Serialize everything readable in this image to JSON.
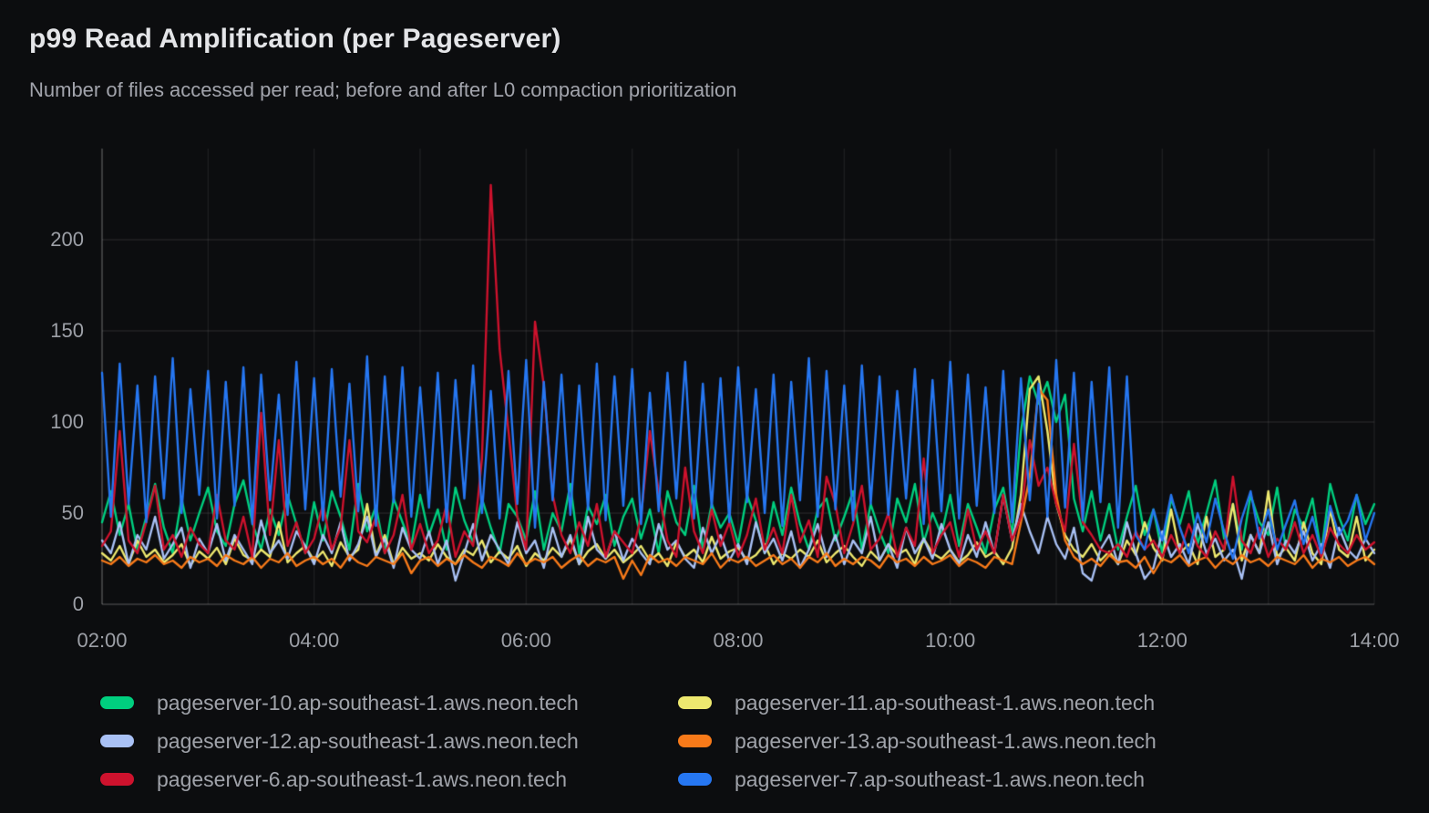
{
  "chart_data": {
    "type": "line",
    "title": "p99 Read Amplification (per Pageserver)",
    "subtitle": "Number of files accessed per read; before and after L0 compaction prioritization",
    "legend_position": "bottom",
    "grid": true,
    "x_axis": {
      "start": "02:00",
      "end": "14:00",
      "step_minutes": 5,
      "total_minutes": 720,
      "tick_labels": [
        "02:00",
        "04:00",
        "06:00",
        "08:00",
        "10:00",
        "12:00",
        "14:00"
      ],
      "tick_every_minutes": 120,
      "grid_every_minutes": 60
    },
    "y_axis": {
      "min": 0,
      "max": 250,
      "tick_values": [
        0,
        50,
        100,
        150,
        200
      ],
      "tick_labels": [
        "0",
        "50",
        "100",
        "150",
        "200"
      ]
    },
    "series": [
      {
        "name": "pageserver-10.ap-southeast-1.aws.neon.tech",
        "color": "#00CF7F",
        "values": [
          45,
          62,
          38,
          55,
          30,
          48,
          66,
          42,
          28,
          58,
          35,
          50,
          64,
          40,
          32,
          55,
          68,
          45,
          30,
          52,
          38,
          60,
          44,
          28,
          56,
          35,
          62,
          48,
          30,
          66,
          40,
          54,
          28,
          58,
          45,
          32,
          60,
          38,
          52,
          30,
          64,
          46,
          34,
          58,
          42,
          28,
          55,
          48,
          35,
          62,
          30,
          50,
          40,
          66,
          28,
          54,
          44,
          60,
          32,
          48,
          58,
          36,
          52,
          28,
          62,
          45,
          38,
          65,
          30,
          55,
          42,
          50,
          33,
          60,
          46,
          28,
          56,
          38,
          64,
          44,
          30,
          52,
          58,
          35,
          48,
          62,
          30,
          55,
          40,
          28,
          58,
          45,
          66,
          34,
          50,
          38,
          60,
          32,
          55,
          42,
          28,
          52,
          64,
          38,
          95,
          125,
          110,
          122,
          100,
          115,
          58,
          40,
          62,
          35,
          55,
          30,
          48,
          65,
          38,
          52,
          28,
          58,
          44,
          62,
          33,
          50,
          68,
          36,
          55,
          30,
          60,
          45,
          38,
          64,
          30,
          52,
          42,
          58,
          28,
          66,
          48,
          35,
          60,
          44,
          55
        ]
      },
      {
        "name": "pageserver-11.ap-southeast-1.aws.neon.tech",
        "color": "#EEE96F",
        "values": [
          28,
          24,
          32,
          22,
          35,
          26,
          30,
          23,
          27,
          33,
          21,
          29,
          25,
          31,
          22,
          36,
          27,
          24,
          30,
          26,
          45,
          23,
          28,
          32,
          24,
          29,
          21,
          34,
          26,
          30,
          55,
          27,
          38,
          22,
          31,
          25,
          28,
          24,
          33,
          26,
          22,
          30,
          27,
          35,
          23,
          29,
          25,
          32,
          21,
          28,
          24,
          31,
          26,
          36,
          22,
          29,
          33,
          25,
          30,
          23,
          27,
          32,
          24,
          28,
          21,
          34,
          26,
          30,
          23,
          37,
          25,
          29,
          31,
          24,
          27,
          33,
          22,
          28,
          25,
          30,
          26,
          35,
          23,
          28,
          32,
          26,
          21,
          29,
          24,
          33,
          27,
          30,
          22,
          36,
          28,
          25,
          30,
          23,
          27,
          34,
          26,
          29,
          22,
          31,
          60,
          118,
          125,
          95,
          55,
          38,
          30,
          26,
          33,
          24,
          29,
          22,
          35,
          27,
          45,
          31,
          24,
          52,
          28,
          33,
          22,
          48,
          26,
          30,
          55,
          24,
          38,
          28,
          62,
          26,
          31,
          24,
          45,
          28,
          22,
          52,
          30,
          26,
          48,
          24,
          30
        ]
      },
      {
        "name": "pageserver-12.ap-southeast-1.aws.neon.tech",
        "color": "#A9C1F5",
        "values": [
          35,
          28,
          45,
          22,
          38,
          30,
          48,
          25,
          33,
          42,
          20,
          36,
          28,
          44,
          24,
          38,
          30,
          22,
          46,
          28,
          35,
          25,
          40,
          32,
          22,
          38,
          28,
          45,
          24,
          33,
          48,
          26,
          36,
          20,
          42,
          30,
          25,
          40,
          22,
          35,
          13,
          28,
          44,
          24,
          38,
          30,
          22,
          45,
          28,
          35,
          20,
          42,
          26,
          38,
          22,
          48,
          30,
          25,
          40,
          24,
          36,
          28,
          22,
          44,
          30,
          35,
          25,
          20,
          42,
          28,
          38,
          24,
          33,
          22,
          45,
          28,
          36,
          24,
          40,
          20,
          30,
          44,
          26,
          38,
          22,
          35,
          28,
          48,
          24,
          33,
          20,
          42,
          28,
          36,
          25,
          44,
          30,
          22,
          38,
          26,
          45,
          28,
          60,
          35,
          55,
          40,
          28,
          48,
          33,
          25,
          42,
          17,
          13,
          30,
          38,
          22,
          45,
          28,
          14,
          20,
          40,
          26,
          33,
          22,
          44,
          28,
          36,
          24,
          30,
          14,
          38,
          28,
          45,
          22,
          35,
          28,
          40,
          24,
          33,
          20,
          42,
          30,
          25,
          36,
          28
        ]
      },
      {
        "name": "pageserver-13.ap-southeast-1.aws.neon.tech",
        "color": "#F87A19",
        "values": [
          24,
          22,
          26,
          21,
          25,
          23,
          27,
          22,
          24,
          20,
          26,
          23,
          25,
          21,
          27,
          24,
          22,
          26,
          20,
          25,
          23,
          28,
          21,
          24,
          26,
          22,
          25,
          20,
          27,
          23,
          21,
          26,
          24,
          22,
          28,
          17,
          24,
          26,
          21,
          25,
          22,
          27,
          23,
          20,
          26,
          24,
          21,
          28,
          22,
          25,
          23,
          26,
          20,
          24,
          27,
          21,
          25,
          23,
          26,
          14,
          24,
          16,
          27,
          23,
          25,
          21,
          26,
          24,
          22,
          28,
          20,
          25,
          23,
          26,
          21,
          24,
          27,
          22,
          25,
          20,
          26,
          23,
          28,
          21,
          25,
          22,
          26,
          24,
          20,
          27,
          23,
          25,
          21,
          26,
          22,
          24,
          27,
          21,
          25,
          23,
          20,
          26,
          24,
          22,
          45,
          70,
          118,
          112,
          60,
          35,
          26,
          22,
          25,
          21,
          27,
          23,
          24,
          20,
          26,
          17,
          25,
          23,
          27,
          21,
          24,
          26,
          20,
          25,
          22,
          27,
          23,
          25,
          21,
          26,
          24,
          22,
          27,
          20,
          25,
          23,
          26,
          21,
          24,
          26,
          22
        ]
      },
      {
        "name": "pageserver-6.ap-southeast-1.aws.neon.tech",
        "color": "#CE122D",
        "values": [
          32,
          40,
          95,
          35,
          28,
          45,
          65,
          30,
          38,
          26,
          42,
          33,
          28,
          60,
          35,
          30,
          48,
          26,
          105,
          38,
          90,
          32,
          45,
          28,
          36,
          55,
          30,
          42,
          90,
          40,
          34,
          48,
          28,
          38,
          60,
          30,
          44,
          28,
          35,
          55,
          26,
          40,
          32,
          80,
          230,
          140,
          95,
          48,
          30,
          155,
          120,
          60,
          38,
          28,
          45,
          32,
          55,
          26,
          40,
          34,
          28,
          48,
          95,
          62,
          35,
          26,
          75,
          40,
          28,
          52,
          32,
          45,
          26,
          38,
          58,
          30,
          42,
          28,
          60,
          34,
          46,
          26,
          70,
          55,
          28,
          44,
          65,
          30,
          36,
          50,
          26,
          42,
          32,
          80,
          28,
          38,
          45,
          26,
          52,
          30,
          40,
          28,
          60,
          35,
          48,
          90,
          65,
          75,
          55,
          40,
          88,
          45,
          38,
          30,
          28,
          33,
          26,
          40,
          30,
          35,
          26,
          38,
          28,
          44,
          32,
          26,
          40,
          30,
          70,
          35,
          28,
          42,
          26,
          36,
          30,
          45,
          28,
          38,
          26,
          42,
          33,
          28,
          38,
          30,
          34
        ]
      },
      {
        "name": "pageserver-7.ap-southeast-1.aws.neon.tech",
        "color": "#2677F2",
        "values": [
          127,
          48,
          132,
          55,
          120,
          45,
          125,
          58,
          135,
          50,
          118,
          60,
          128,
          47,
          122,
          54,
          130,
          44,
          126,
          57,
          115,
          49,
          133,
          52,
          124,
          46,
          129,
          59,
          121,
          51,
          136,
          43,
          125,
          56,
          130,
          48,
          119,
          53,
          127,
          45,
          123,
          58,
          131,
          50,
          117,
          47,
          128,
          55,
          134,
          42,
          122,
          57,
          126,
          49,
          120,
          52,
          132,
          46,
          125,
          54,
          129,
          44,
          116,
          51,
          127,
          58,
          133,
          47,
          121,
          53,
          124,
          45,
          130,
          56,
          118,
          50,
          126,
          43,
          122,
          57,
          135,
          48,
          128,
          52,
          120,
          46,
          131,
          55,
          125,
          49,
          117,
          58,
          129,
          44,
          123,
          51,
          133,
          47,
          126,
          54,
          119,
          50,
          128,
          45,
          124,
          57,
          121,
          48,
          134,
          53,
          127,
          46,
          122,
          56,
          130,
          42,
          125,
          38,
          30,
          52,
          35,
          60,
          42,
          28,
          50,
          34,
          58,
          40,
          25,
          47,
          62,
          36,
          52,
          30,
          44,
          57,
          33,
          48,
          28,
          54,
          38,
          46,
          60,
          35,
          50
        ]
      }
    ]
  }
}
